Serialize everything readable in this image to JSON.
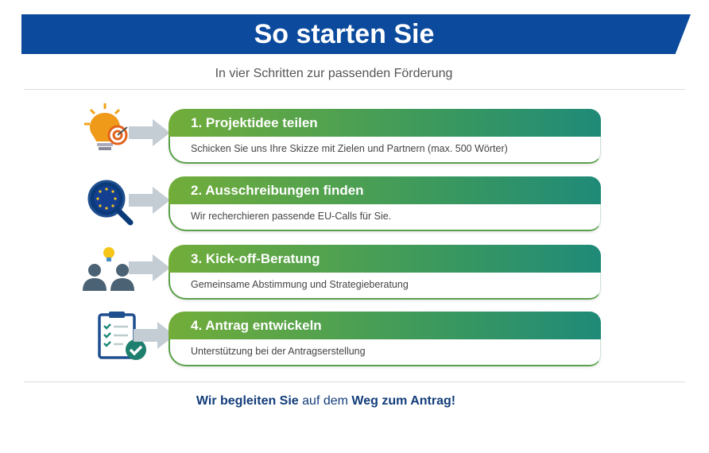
{
  "header": {
    "title": "So starten Sie",
    "subtitle": "In vier Schritten zur passenden Förderung"
  },
  "steps": [
    {
      "title": "1. Projektidee teilen",
      "text": "Schicken Sie uns Ihre Skizze mit Zielen und Partnern (max. 500 Wörter)",
      "icon": "lightbulb-target-icon"
    },
    {
      "title": "2. Ausschreibungen finden",
      "text": "Wir recherchieren passende EU-Calls für Sie.",
      "icon": "eu-magnifier-icon"
    },
    {
      "title": "3. Kick-off-Beratung",
      "text": "Gemeinsame Abstimmung und Strategieberatung",
      "icon": "people-idea-icon"
    },
    {
      "title": "4. Antrag entwickeln",
      "text": "Unterstützung bei der Antragserstellung",
      "icon": "clipboard-check-icon"
    }
  ],
  "footer": {
    "part1": "Wir begleiten Sie",
    "part2": " auf dem ",
    "part3": "Weg zum Antrag!"
  },
  "colors": {
    "banner": "#0b4a9c",
    "green": "#72ad3a",
    "teal": "#1f8a78"
  }
}
